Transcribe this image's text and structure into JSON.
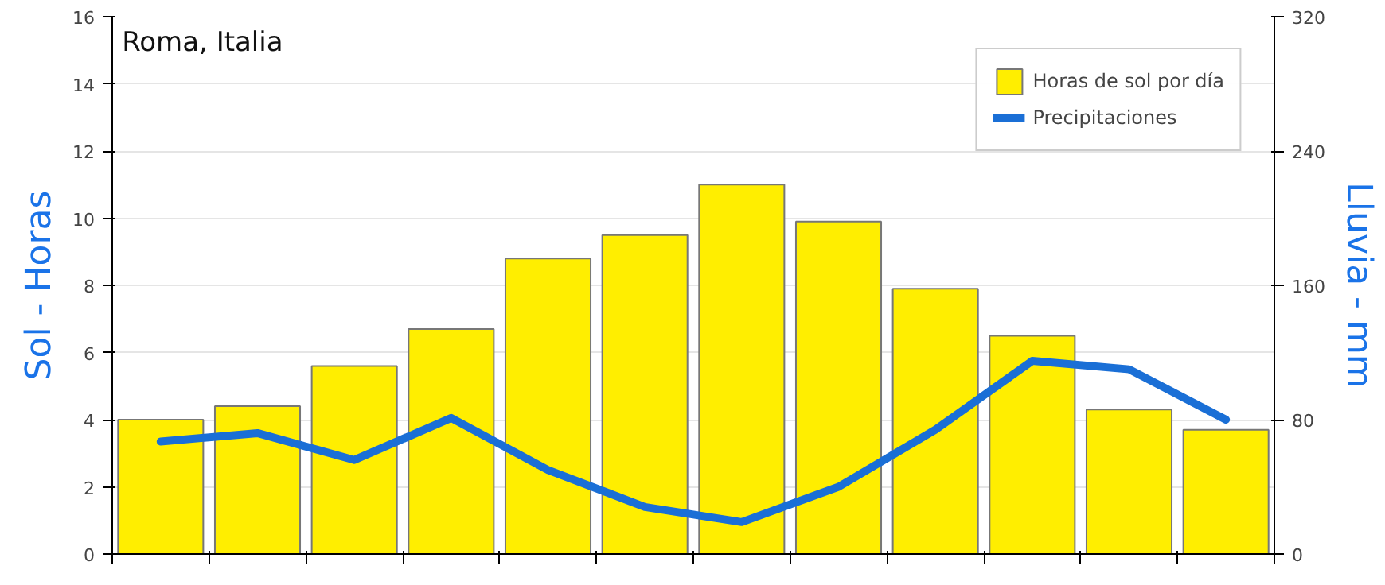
{
  "chart_data": {
    "type": "bar",
    "title": "Roma, Italia",
    "ylabel": "Sol - Horas",
    "y2label": "Lluvia - mm",
    "categories": [
      null,
      null,
      null,
      null,
      null,
      null,
      null,
      null,
      null,
      null,
      null,
      null
    ],
    "series": [
      {
        "name": "Horas de sol por día",
        "color": "#ffee00",
        "values": [
          4.0,
          4.4,
          5.6,
          6.7,
          8.8,
          9.5,
          11.0,
          9.9,
          7.9,
          6.5,
          4.3,
          3.7
        ]
      },
      {
        "name": "Precipitaciones",
        "type": "line",
        "axis": "y2",
        "color": "#1a6fd6",
        "values": [
          67,
          72,
          56,
          81,
          50,
          28,
          19,
          40,
          74,
          115,
          110,
          80
        ]
      }
    ],
    "ylim": [
      0,
      16
    ],
    "yticks": [
      0,
      2,
      4,
      6,
      8,
      10,
      12,
      14,
      16
    ],
    "y2lim": [
      0,
      320
    ],
    "y2ticks": [
      0,
      80,
      160,
      240,
      320
    ],
    "grid": "y",
    "legend": "top right",
    "marker": "none",
    "line_style": "solid"
  }
}
